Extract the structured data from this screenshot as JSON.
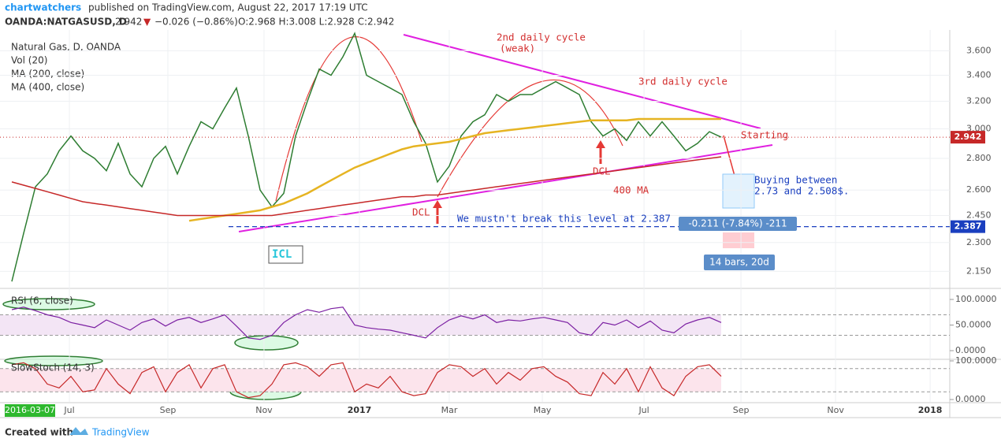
{
  "header": {
    "author": "chartwatchers",
    "published": "published on TradingView.com, August 22, 2017 17:19 UTC",
    "symbol": "OANDA:NATGASUSD, D",
    "last": "2.942",
    "change": "−0.026 (−0.86%)",
    "ohlc": "O:2.968 H:3.008 L:2.928 C:2.942"
  },
  "legend": [
    "Natural Gas, D, OANDA",
    "Vol (20)",
    "MA (200, close)",
    "MA (400, close)"
  ],
  "cursor_date": "2016-03-07",
  "chart_data": {
    "type": "line",
    "log_scale": true,
    "ylim": [
      2.07,
      3.78
    ],
    "yticks": [
      {
        "value": 3.6,
        "label": "3.600"
      },
      {
        "value": 3.4,
        "label": "3.400"
      },
      {
        "value": 3.2,
        "label": "3.200"
      },
      {
        "value": 3.0,
        "label": "3.000"
      },
      {
        "value": 2.8,
        "label": "2.800"
      },
      {
        "value": 2.6,
        "label": "2.600"
      },
      {
        "value": 2.45,
        "label": "2.450"
      },
      {
        "value": 2.3,
        "label": "2.300"
      },
      {
        "value": 2.15,
        "label": "2.150"
      }
    ],
    "xlim": [
      -1,
      79.33
    ],
    "xticks": [
      {
        "value": 4.87,
        "label": "Jul"
      },
      {
        "value": 13.2,
        "label": "Sep"
      },
      {
        "value": 21.33,
        "label": "Nov"
      },
      {
        "value": 29.4,
        "label": "2017"
      },
      {
        "value": 37,
        "label": "Mar"
      },
      {
        "value": 44.87,
        "label": "May"
      },
      {
        "value": 53.47,
        "label": "Jul"
      },
      {
        "value": 61.67,
        "label": "Sep"
      },
      {
        "value": 69.67,
        "label": "Nov"
      },
      {
        "value": 77.67,
        "label": "2018"
      }
    ],
    "last_price": {
      "value": 2.942,
      "label": "2.942"
    },
    "level": {
      "value": 2.387,
      "label": "2.387"
    },
    "series": [
      {
        "name": "Natural Gas, D, OANDA",
        "color": "#2e7d32",
        "values": [
          2.1,
          2.35,
          2.62,
          2.7,
          2.85,
          2.95,
          2.85,
          2.8,
          2.72,
          2.9,
          2.7,
          2.62,
          2.8,
          2.88,
          2.7,
          2.88,
          3.05,
          3.0,
          3.15,
          3.3,
          2.95,
          2.6,
          2.5,
          2.58,
          2.95,
          3.2,
          3.45,
          3.4,
          3.55,
          3.75,
          3.4,
          3.35,
          3.3,
          3.25,
          3.05,
          2.9,
          2.65,
          2.75,
          2.95,
          3.05,
          3.1,
          3.25,
          3.2,
          3.25,
          3.25,
          3.3,
          3.35,
          3.3,
          3.25,
          3.05,
          2.95,
          3.0,
          2.92,
          3.05,
          2.95,
          3.05,
          2.95,
          2.85,
          2.9,
          2.98,
          2.942
        ]
      },
      {
        "name": "MA (200, close)",
        "color": "#e6b422",
        "values": [
          null,
          null,
          null,
          null,
          null,
          null,
          null,
          null,
          null,
          null,
          null,
          null,
          null,
          null,
          null,
          2.42,
          2.43,
          2.44,
          2.45,
          2.46,
          2.47,
          2.48,
          2.5,
          2.52,
          2.55,
          2.58,
          2.62,
          2.66,
          2.7,
          2.74,
          2.77,
          2.8,
          2.83,
          2.86,
          2.88,
          2.89,
          2.9,
          2.91,
          2.93,
          2.95,
          2.97,
          2.98,
          2.99,
          3.0,
          3.01,
          3.02,
          3.03,
          3.04,
          3.05,
          3.06,
          3.06,
          3.06,
          3.06,
          3.07,
          3.07,
          3.07,
          3.07,
          3.07,
          3.07,
          3.07,
          3.07
        ]
      },
      {
        "name": "MA (400, close)",
        "color": "#c62828",
        "values": [
          2.65,
          2.63,
          2.61,
          2.59,
          2.57,
          2.55,
          2.53,
          2.52,
          2.51,
          2.5,
          2.49,
          2.48,
          2.47,
          2.46,
          2.45,
          2.45,
          2.45,
          2.45,
          2.45,
          2.45,
          2.45,
          2.45,
          2.45,
          2.46,
          2.47,
          2.48,
          2.49,
          2.5,
          2.51,
          2.52,
          2.53,
          2.54,
          2.55,
          2.56,
          2.56,
          2.57,
          2.57,
          2.58,
          2.59,
          2.6,
          2.61,
          2.62,
          2.63,
          2.64,
          2.65,
          2.66,
          2.67,
          2.68,
          2.69,
          2.7,
          2.71,
          2.72,
          2.73,
          2.74,
          2.75,
          2.76,
          2.77,
          2.78,
          2.79,
          2.8,
          2.81
        ]
      }
    ]
  },
  "rsi": {
    "title": "RSI (6, close)",
    "color": "#7b1fa2",
    "ylim": [
      0,
      100
    ],
    "yticks": [
      {
        "value": 100,
        "label": "100.0000"
      },
      {
        "value": 50,
        "label": "50.0000"
      },
      {
        "value": 0,
        "label": "0.0000"
      }
    ],
    "bands": [
      30,
      70
    ],
    "values": [
      80,
      85,
      78,
      70,
      65,
      55,
      50,
      45,
      60,
      50,
      40,
      55,
      62,
      48,
      60,
      65,
      55,
      62,
      70,
      48,
      25,
      22,
      30,
      55,
      70,
      80,
      75,
      82,
      85,
      50,
      45,
      42,
      40,
      35,
      30,
      25,
      45,
      60,
      68,
      62,
      70,
      55,
      60,
      58,
      62,
      65,
      60,
      55,
      35,
      30,
      55,
      50,
      60,
      45,
      58,
      40,
      35,
      52,
      60,
      65,
      55
    ]
  },
  "stoch": {
    "title": "SlowStoch (14, 3)",
    "color": "#c62828",
    "ylim": [
      0,
      100
    ],
    "yticks": [
      {
        "value": 100,
        "label": "100.0000"
      },
      {
        "value": 0,
        "label": "0.0000"
      }
    ],
    "bands": [
      20,
      80
    ],
    "values": [
      90,
      95,
      80,
      40,
      30,
      60,
      20,
      25,
      80,
      40,
      15,
      70,
      85,
      20,
      70,
      90,
      30,
      80,
      90,
      20,
      5,
      10,
      40,
      90,
      95,
      85,
      60,
      90,
      95,
      20,
      40,
      30,
      60,
      20,
      10,
      15,
      70,
      90,
      85,
      60,
      80,
      40,
      70,
      50,
      80,
      85,
      60,
      45,
      15,
      10,
      70,
      40,
      80,
      20,
      85,
      30,
      10,
      60,
      85,
      90,
      60
    ]
  },
  "annotations": {
    "cycle2": "2nd daily cycle",
    "weak": "(weak)",
    "cycle3": "3rd daily cycle",
    "starting": "Starting",
    "dcl1": "DCL",
    "dcl2": "DCL",
    "icl": "ICL",
    "ma400": "400 MA",
    "buying1": "Buying between",
    "buying2": "2.73 and 2.508$.",
    "level_note": "We mustn't break this level at 2.387",
    "measure": "-0.211 (-7.84%) -211",
    "bars": "14 bars, 20d"
  },
  "footer": {
    "created": "Created with",
    "brand": "TradingView"
  }
}
